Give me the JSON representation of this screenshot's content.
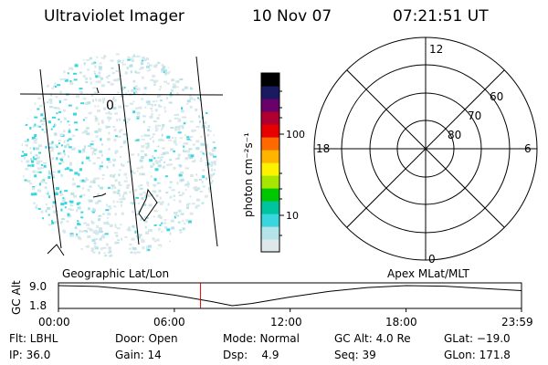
{
  "header": {
    "instrument": "Ultraviolet Imager",
    "date": "10 Nov 07",
    "time": "07:21:51 UT"
  },
  "image_panel": {
    "contour_label": "0"
  },
  "colorbar": {
    "unit_label": "photon cm⁻²s⁻¹",
    "ticks": [
      "100",
      "10"
    ],
    "scale": "log",
    "colors": [
      "#dfe8e8",
      "#b5e3ea",
      "#39d6e0",
      "#00c3a0",
      "#00c800",
      "#a6e600",
      "#fff200",
      "#ffb400",
      "#ff6a00",
      "#e80000",
      "#b00030",
      "#6a006a",
      "#1a1a60",
      "#000000"
    ]
  },
  "polar": {
    "mlt_labels": {
      "top": "12",
      "right": "6",
      "bottom": "0",
      "left": "18"
    },
    "lat_labels": [
      "60",
      "70",
      "80"
    ]
  },
  "orbit_plot": {
    "left_title": "Geographic Lat/Lon",
    "right_title": "Apex MLat/MLT",
    "ylabel": "GC Alt",
    "y_ticks": [
      "9.0",
      "1.8"
    ],
    "x_ticks": [
      "00:00",
      "06:00",
      "12:00",
      "18:00",
      "23:59"
    ],
    "marker_color": "#e00000",
    "chart_data": {
      "type": "line",
      "title": "",
      "xlabel": "",
      "ylabel": "GC Alt",
      "x_hours": [
        0,
        2,
        4,
        6,
        8,
        9,
        10,
        12,
        14,
        16,
        18,
        20,
        22,
        23.98
      ],
      "y_alt": [
        9.0,
        8.7,
        7.5,
        5.6,
        3.2,
        1.8,
        2.6,
        4.9,
        6.9,
        8.3,
        9.0,
        8.8,
        8.0,
        7.2
      ],
      "ylim": [
        1.8,
        9.0
      ],
      "xlim": [
        0,
        23.98
      ],
      "marker_hour": 7.36
    }
  },
  "status": {
    "flt": "Flt: LBHL",
    "ip": "IP: 36.0",
    "door": "Door: Open",
    "gain": "Gain: 14",
    "mode": "Mode: Normal",
    "dsp": "Dsp:    4.9",
    "gcalt": "GC Alt: 4.0 Re",
    "seq": "Seq: 39",
    "glat": "GLat: −19.0",
    "glon": "GLon: 171.8"
  }
}
